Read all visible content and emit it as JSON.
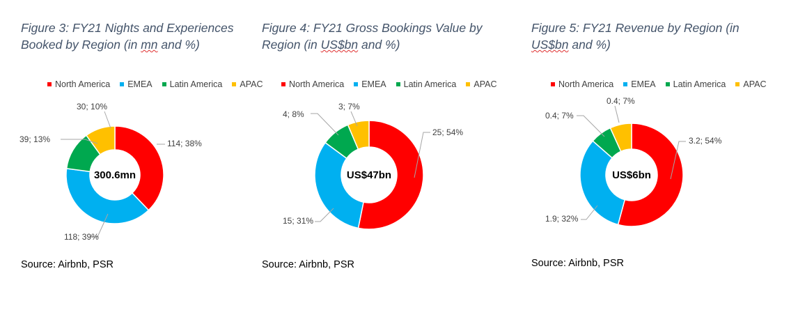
{
  "colors": {
    "North America": "#ff0000",
    "EMEA": "#00b0f0",
    "Latin America": "#00a84f",
    "APAC": "#ffc000"
  },
  "chart_data": [
    {
      "type": "pie",
      "title_parts": [
        "Figure 3: FY21 Nights and Experiences Booked by Region (in ",
        "mn",
        " and %)"
      ],
      "legend": [
        "North America",
        "EMEA",
        "Latin America",
        "APAC"
      ],
      "categories": [
        "North America",
        "EMEA",
        "Latin America",
        "APAC"
      ],
      "values": [
        114,
        118,
        39,
        30
      ],
      "labels": [
        "114; 38%",
        "118; 39%",
        "39; 13%",
        "30; 10%"
      ],
      "center_label": "300.6mn",
      "source": "Source: Airbnb, PSR"
    },
    {
      "type": "pie",
      "title_parts": [
        "Figure 4: FY21 Gross Bookings Value by Region (in ",
        "US$bn",
        " and %)"
      ],
      "legend": [
        "North America",
        "EMEA",
        "Latin America",
        "APAC"
      ],
      "categories": [
        "North America",
        "EMEA",
        "Latin America",
        "APAC"
      ],
      "values": [
        25,
        15,
        4,
        3
      ],
      "labels": [
        "25; 54%",
        "15; 31%",
        "4; 8%",
        "3; 7%"
      ],
      "center_label": "US$47bn",
      "source": "Source: Airbnb, PSR"
    },
    {
      "type": "pie",
      "title_parts": [
        "Figure 5: FY21 Revenue by Region (in ",
        "US$bn",
        " and %)"
      ],
      "legend": [
        "North America",
        "EMEA",
        "Latin America",
        "APAC"
      ],
      "categories": [
        "North America",
        "EMEA",
        "Latin America",
        "APAC"
      ],
      "values": [
        3.2,
        1.9,
        0.4,
        0.4
      ],
      "labels": [
        "3.2; 54%",
        "1.9; 32%",
        "0.4; 7%",
        "0.4; 7%"
      ],
      "center_label": "US$6bn",
      "source": "Source: Airbnb, PSR"
    }
  ]
}
